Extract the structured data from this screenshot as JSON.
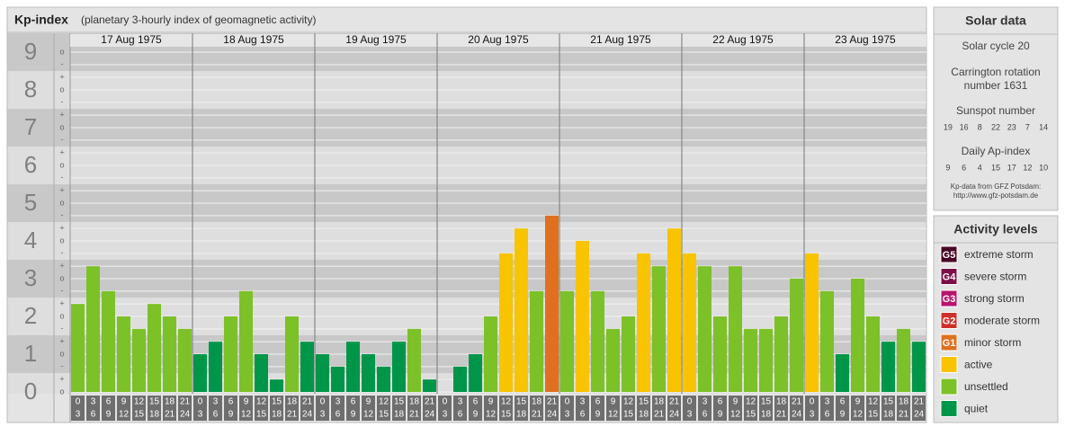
{
  "chart_data": {
    "type": "bar",
    "title": "Kp-index",
    "subtitle": "(planetary 3-hourly index of geomagnetic activity)",
    "days": [
      "17 Aug 1975",
      "18 Aug 1975",
      "19 Aug 1975",
      "20 Aug 1975",
      "21 Aug 1975",
      "22 Aug 1975",
      "23 Aug 1975"
    ],
    "hours": [
      [
        "0",
        "3"
      ],
      [
        "3",
        "6"
      ],
      [
        "6",
        "9"
      ],
      [
        "9",
        "12"
      ],
      [
        "12",
        "15"
      ],
      [
        "15",
        "18"
      ],
      [
        "18",
        "21"
      ],
      [
        "21",
        "24"
      ]
    ],
    "values": [
      2.33,
      3.33,
      2.67,
      2,
      1.67,
      2.33,
      2,
      1.67,
      1,
      1.33,
      2,
      2.67,
      1,
      0.33,
      2,
      1.33,
      1,
      0.67,
      1.33,
      1,
      0.67,
      1.33,
      1.67,
      0.33,
      0,
      0.67,
      1,
      2,
      3.67,
      4.33,
      2.67,
      4.67,
      2.67,
      4,
      2.67,
      1.67,
      2,
      3.67,
      3.33,
      4.33,
      3.67,
      3.33,
      2,
      3.33,
      1.67,
      1.67,
      2,
      3,
      3.67,
      2.67,
      1,
      3,
      2,
      1.33,
      1.67,
      1.33
    ],
    "colors": [
      "#7cc128",
      "#7cc128",
      "#7cc128",
      "#7cc128",
      "#7cc128",
      "#7cc128",
      "#7cc128",
      "#7cc128",
      "#00964a",
      "#00964a",
      "#7cc128",
      "#7cc128",
      "#00964a",
      "#00964a",
      "#7cc128",
      "#00964a",
      "#00964a",
      "#00964a",
      "#00964a",
      "#00964a",
      "#00964a",
      "#00964a",
      "#7cc128",
      "#00964a",
      "#00964a",
      "#00964a",
      "#00964a",
      "#7cc128",
      "#f8c400",
      "#f8c400",
      "#7cc128",
      "#e07020",
      "#7cc128",
      "#f8c400",
      "#7cc128",
      "#7cc128",
      "#7cc128",
      "#f8c400",
      "#7cc128",
      "#f8c400",
      "#f8c400",
      "#7cc128",
      "#7cc128",
      "#7cc128",
      "#7cc128",
      "#7cc128",
      "#7cc128",
      "#7cc128",
      "#f8c400",
      "#7cc128",
      "#00964a",
      "#7cc128",
      "#7cc128",
      "#00964a",
      "#7cc128",
      "#00964a"
    ],
    "ylim": [
      0,
      9.5
    ],
    "yticks": [
      0,
      1,
      2,
      3,
      4,
      5,
      6,
      7,
      8,
      9
    ],
    "minor_ticks": [
      {
        "value": 0,
        "label": "o"
      },
      {
        "value": 0.33,
        "label": "+"
      },
      {
        "value": 0.67,
        "label": "-"
      },
      {
        "value": 1,
        "label": "o"
      },
      {
        "value": 1.33,
        "label": "+"
      },
      {
        "value": 1.67,
        "label": "-"
      },
      {
        "value": 2,
        "label": "o"
      },
      {
        "value": 2.33,
        "label": "+"
      },
      {
        "value": 2.67,
        "label": "-"
      },
      {
        "value": 3,
        "label": "o"
      },
      {
        "value": 3.33,
        "label": "+"
      },
      {
        "value": 3.67,
        "label": "-"
      },
      {
        "value": 4,
        "label": "o"
      },
      {
        "value": 4.33,
        "label": "+"
      },
      {
        "value": 4.67,
        "label": "-"
      },
      {
        "value": 5,
        "label": "o"
      },
      {
        "value": 5.33,
        "label": "+"
      },
      {
        "value": 5.67,
        "label": "-"
      },
      {
        "value": 6,
        "label": "o"
      },
      {
        "value": 6.33,
        "label": "+"
      },
      {
        "value": 6.67,
        "label": "-"
      },
      {
        "value": 7,
        "label": "o"
      },
      {
        "value": 7.33,
        "label": "+"
      },
      {
        "value": 7.67,
        "label": "-"
      },
      {
        "value": 8,
        "label": "o"
      },
      {
        "value": 8.33,
        "label": "+"
      },
      {
        "value": 8.67,
        "label": "-"
      },
      {
        "value": 9,
        "label": "o"
      }
    ]
  },
  "solar_data": {
    "title": "Solar data",
    "cycle": "Solar cycle 20",
    "carrington": [
      "Carrington rotation",
      "number 1631"
    ],
    "sunspot_title": "Sunspot number",
    "sunspot_numbers": [
      19,
      16,
      8,
      22,
      23,
      7,
      14
    ],
    "ap_title": "Daily Ap-index",
    "ap_index": [
      9,
      6,
      4,
      15,
      17,
      12,
      10
    ],
    "source": [
      "Kp-data from GFZ Potsdam:",
      "http://www.gfz-potsdam.de"
    ]
  },
  "activity_levels": {
    "title": "Activity levels",
    "items": [
      {
        "badge": "G5",
        "label": "extreme storm",
        "color": "#4a0024"
      },
      {
        "badge": "G4",
        "label": "severe storm",
        "color": "#7a1046"
      },
      {
        "badge": "G3",
        "label": "strong storm",
        "color": "#b8146c"
      },
      {
        "badge": "G2",
        "label": "moderate storm",
        "color": "#d0302a"
      },
      {
        "badge": "G1",
        "label": "minor storm",
        "color": "#e07020"
      },
      {
        "badge": null,
        "label": "active",
        "color": "#f8c400"
      },
      {
        "badge": null,
        "label": "unsettled",
        "color": "#7cc128"
      },
      {
        "badge": null,
        "label": "quiet",
        "color": "#00964a"
      }
    ]
  }
}
